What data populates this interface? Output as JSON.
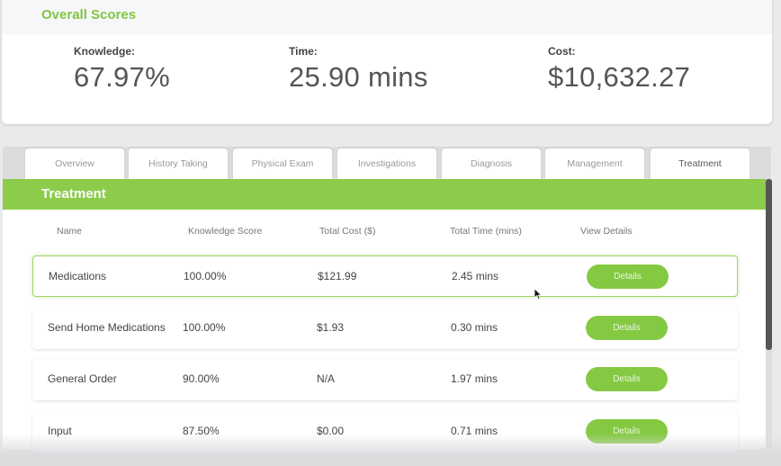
{
  "scores": {
    "title": "Overall Scores",
    "knowledge": {
      "label": "Knowledge:",
      "value": "67.97%"
    },
    "time": {
      "label": "Time:",
      "value": "25.90 mins"
    },
    "cost": {
      "label": "Cost:",
      "value": "$10,632.27"
    }
  },
  "tabs": [
    {
      "label": "Overview"
    },
    {
      "label": "History Taking"
    },
    {
      "label": "Physical Exam"
    },
    {
      "label": "Investigations"
    },
    {
      "label": "Diagnosis"
    },
    {
      "label": "Management"
    },
    {
      "label": "Treatment",
      "active": true
    }
  ],
  "panel": {
    "title": "Treatment",
    "columns": [
      "Name",
      "Knowledge Score",
      "Total Cost ($)",
      "Total Time (mins)",
      "View Details"
    ],
    "details_label": "Details",
    "rows": [
      {
        "name": "Medications",
        "knowledge": "100.00%",
        "cost": "$121.99",
        "time": "2.45 mins",
        "selected": true
      },
      {
        "name": "Send Home Medications",
        "knowledge": "100.00%",
        "cost": "$1.93",
        "time": "0.30 mins"
      },
      {
        "name": "General Order",
        "knowledge": "90.00%",
        "cost": "N/A",
        "time": "1.97 mins"
      },
      {
        "name": "Input",
        "knowledge": "87.50%",
        "cost": "$0.00",
        "time": "0.71 mins"
      }
    ]
  },
  "colors": {
    "accent": "#8ccc4a",
    "title_green": "#7fc642",
    "button": "#85c943"
  },
  "icons": {
    "cursor": "mouse-pointer-icon"
  }
}
